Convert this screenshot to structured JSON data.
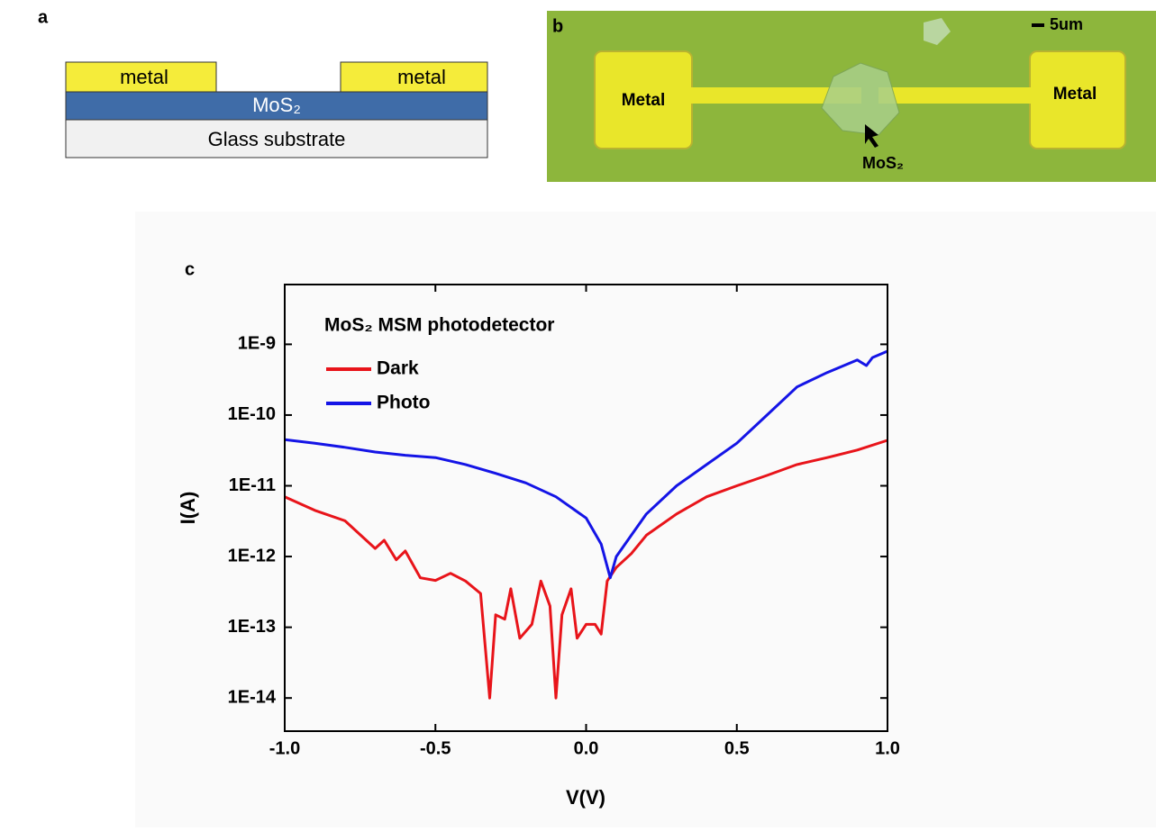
{
  "panel_a": {
    "label": "a",
    "left_metal": "metal",
    "right_metal": "metal",
    "channel": "MoS₂",
    "substrate": "Glass substrate"
  },
  "panel_b": {
    "label": "b",
    "scale_bar": "5um",
    "left_pad": "Metal",
    "right_pad": "Metal",
    "flake": "MoS₂"
  },
  "chart_data": {
    "type": "line",
    "panel_label": "c",
    "legend_title": "MoS₂ MSM photodetector",
    "x_label": "V(V)",
    "y_label": "I(A)",
    "log_y": true,
    "xlim": [
      -1,
      1
    ],
    "ylim": [
      3.4e-15,
      7e-09
    ],
    "xticks": [
      {
        "value": -1,
        "label": "-1.0"
      },
      -0.5,
      {
        "value": 0,
        "label": "0.0"
      },
      0.5,
      {
        "value": 1,
        "label": "1.0"
      }
    ],
    "yticks": [
      {
        "value": 1e-14,
        "label": "1E-14"
      },
      {
        "value": 1e-13,
        "label": "1E-13"
      },
      {
        "value": 1e-12,
        "label": "1E-12"
      },
      {
        "value": 1e-11,
        "label": "1E-11"
      },
      {
        "value": 1e-10,
        "label": "1E-10"
      },
      {
        "value": 1e-09,
        "label": "1E-9"
      }
    ],
    "series": [
      {
        "name": "Dark",
        "color": "#e8141a",
        "x": [
          -1,
          -0.9,
          -0.8,
          -0.7,
          -0.67,
          -0.63,
          -0.6,
          -0.55,
          -0.5,
          -0.45,
          -0.4,
          -0.35,
          -0.32,
          -0.3,
          -0.27,
          -0.25,
          -0.22,
          -0.18,
          -0.15,
          -0.12,
          -0.1,
          -0.08,
          -0.05,
          -0.03,
          0,
          0.03,
          0.05,
          0.07,
          0.1,
          0.15,
          0.2,
          0.3,
          0.4,
          0.5,
          0.6,
          0.7,
          0.8,
          0.9,
          1
        ],
        "values": [
          7e-12,
          4.5e-12,
          3.2e-12,
          1.3e-12,
          1.7e-12,
          9e-13,
          1.2e-12,
          5e-13,
          4.6e-13,
          5.8e-13,
          4.5e-13,
          3e-13,
          1e-14,
          1.5e-13,
          1.3e-13,
          3.5e-13,
          7e-14,
          1.1e-13,
          4.5e-13,
          2e-13,
          1e-14,
          1.5e-13,
          3.5e-13,
          7e-14,
          1.1e-13,
          1.1e-13,
          8e-14,
          4.5e-13,
          7e-13,
          1.1e-12,
          2e-12,
          4e-12,
          7e-12,
          1e-11,
          1.4e-11,
          2e-11,
          2.5e-11,
          3.2e-11,
          4.4e-11
        ]
      },
      {
        "name": "Photo",
        "color": "#1414e6",
        "x": [
          -1,
          -0.9,
          -0.8,
          -0.7,
          -0.6,
          -0.5,
          -0.4,
          -0.3,
          -0.2,
          -0.1,
          0,
          0.05,
          0.08,
          0.1,
          0.15,
          0.2,
          0.3,
          0.4,
          0.5,
          0.6,
          0.7,
          0.8,
          0.9,
          0.93,
          0.95,
          1
        ],
        "values": [
          4.5e-11,
          4e-11,
          3.5e-11,
          3e-11,
          2.7e-11,
          2.5e-11,
          2e-11,
          1.5e-11,
          1.1e-11,
          7e-12,
          3.5e-12,
          1.5e-12,
          5e-13,
          1e-12,
          2e-12,
          4e-12,
          1e-11,
          2e-11,
          4e-11,
          1e-10,
          2.5e-10,
          4e-10,
          6e-10,
          5e-10,
          6.5e-10,
          8e-10
        ]
      }
    ],
    "legend": "upper left"
  }
}
